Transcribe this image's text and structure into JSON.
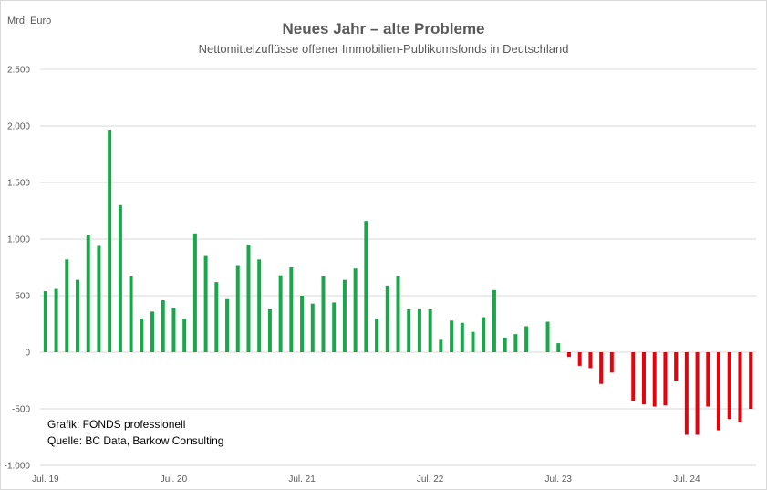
{
  "chart_data": {
    "type": "bar",
    "title": "Neues Jahr – alte Probleme",
    "subtitle": "Nettomittelzuflüsse offener Immobilien-Publikumsfonds in Deutschland",
    "ylabel": "Mrd. Euro",
    "ylim": [
      -1000,
      2500
    ],
    "yticks": [
      -1000,
      -500,
      0,
      500,
      1000,
      1500,
      2000,
      2500
    ],
    "ytick_labels": [
      "-1.000",
      "-500",
      "0",
      "500",
      "1.000",
      "1.500",
      "2.000",
      "2.500"
    ],
    "xtick_labels": [
      "Jul. 19",
      "Jul. 20",
      "Jul. 21",
      "Jul. 22",
      "Jul. 23",
      "Jul. 24"
    ],
    "xtick_index": [
      0,
      12,
      24,
      36,
      48,
      60
    ],
    "grid": true,
    "positive_color": "#1aa64a",
    "negative_color": "#e8000b",
    "values": [
      540,
      560,
      820,
      640,
      1040,
      940,
      1960,
      1300,
      670,
      290,
      360,
      460,
      390,
      290,
      1050,
      850,
      620,
      470,
      770,
      950,
      820,
      380,
      680,
      750,
      500,
      430,
      670,
      440,
      640,
      740,
      1160,
      290,
      590,
      670,
      380,
      380,
      380,
      110,
      280,
      260,
      180,
      310,
      550,
      130,
      160,
      230,
      0,
      270,
      80,
      -40,
      -120,
      -140,
      -280,
      -180,
      0,
      -430,
      -460,
      -480,
      -470,
      -250,
      -730,
      -730,
      -480,
      -690,
      -590,
      -620,
      -500
    ],
    "notes": [
      "Grafik: FONDS professionell",
      "Quelle: BC Data, Barkow Consulting"
    ]
  }
}
